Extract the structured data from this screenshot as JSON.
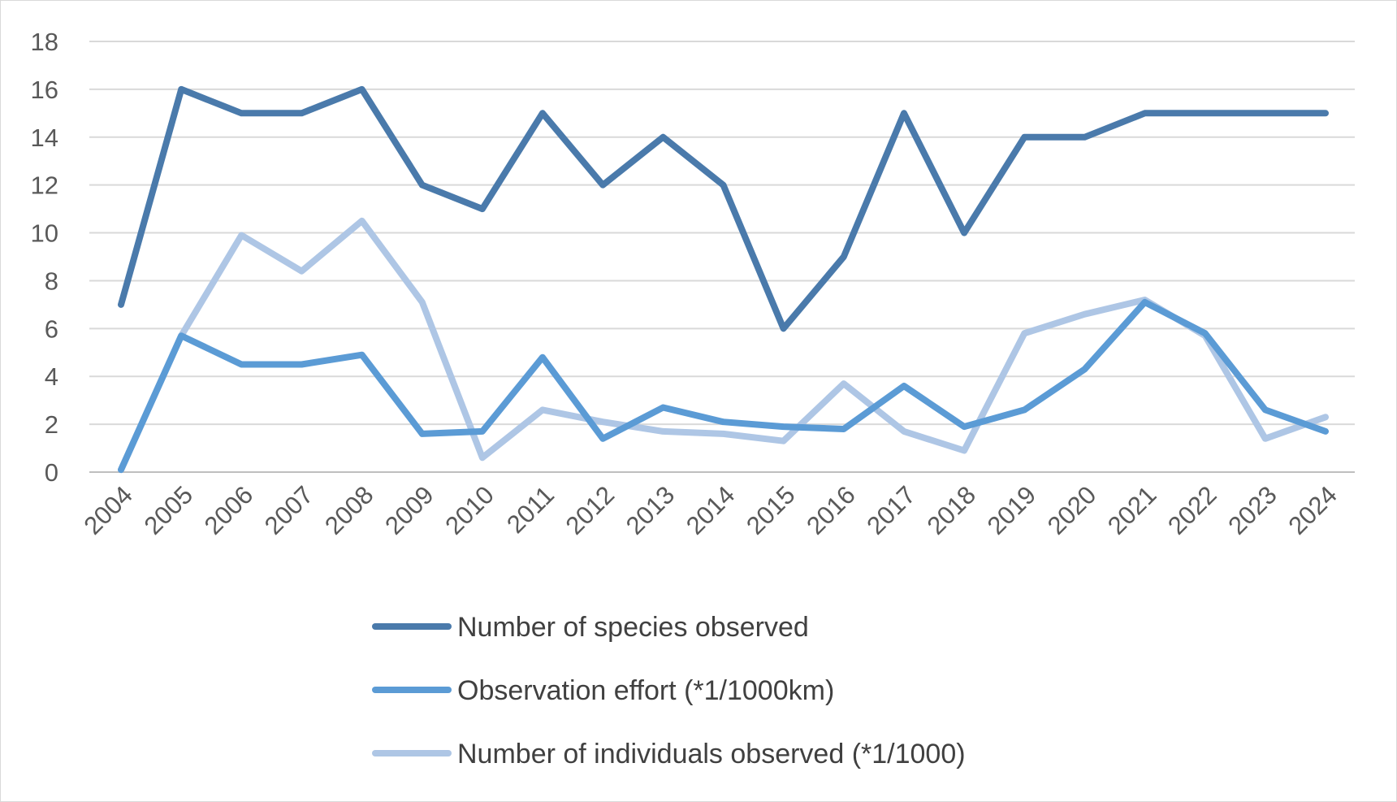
{
  "chart_data": {
    "type": "line",
    "title": "",
    "xlabel": "",
    "ylabel": "",
    "ylim": [
      0,
      18
    ],
    "yticks": [
      0,
      2,
      4,
      6,
      8,
      10,
      12,
      14,
      16,
      18
    ],
    "grid": true,
    "legend_position": "bottom",
    "categories": [
      "2004",
      "2005",
      "2006",
      "2007",
      "2008",
      "2009",
      "2010",
      "2011",
      "2012",
      "2013",
      "2014",
      "2015",
      "2016",
      "2017",
      "2018",
      "2019",
      "2020",
      "2021",
      "2022",
      "2023",
      "2024"
    ],
    "series": [
      {
        "name": "Number of species observed",
        "color": "#4a7aab",
        "values": [
          7,
          16,
          15,
          15,
          16,
          12,
          11,
          15,
          12,
          14,
          12,
          6,
          9,
          15,
          10,
          14,
          14,
          15,
          15,
          15,
          15
        ]
      },
      {
        "name": "Observation effort (*1/1000km)",
        "color": "#5b9bd5",
        "values": [
          0.1,
          5.7,
          4.5,
          4.5,
          4.9,
          1.6,
          1.7,
          4.8,
          1.4,
          2.7,
          2.1,
          1.9,
          1.8,
          3.6,
          1.9,
          2.6,
          4.3,
          7.1,
          5.8,
          2.6,
          1.7
        ]
      },
      {
        "name": "Number of individuals observed (*1/1000)",
        "color": "#aec6e5",
        "values": [
          0.1,
          5.7,
          9.9,
          8.4,
          10.5,
          7.1,
          0.6,
          2.6,
          2.1,
          1.7,
          1.6,
          1.3,
          3.7,
          1.7,
          0.9,
          5.8,
          6.6,
          7.2,
          5.7,
          1.4,
          2.3
        ]
      }
    ]
  }
}
